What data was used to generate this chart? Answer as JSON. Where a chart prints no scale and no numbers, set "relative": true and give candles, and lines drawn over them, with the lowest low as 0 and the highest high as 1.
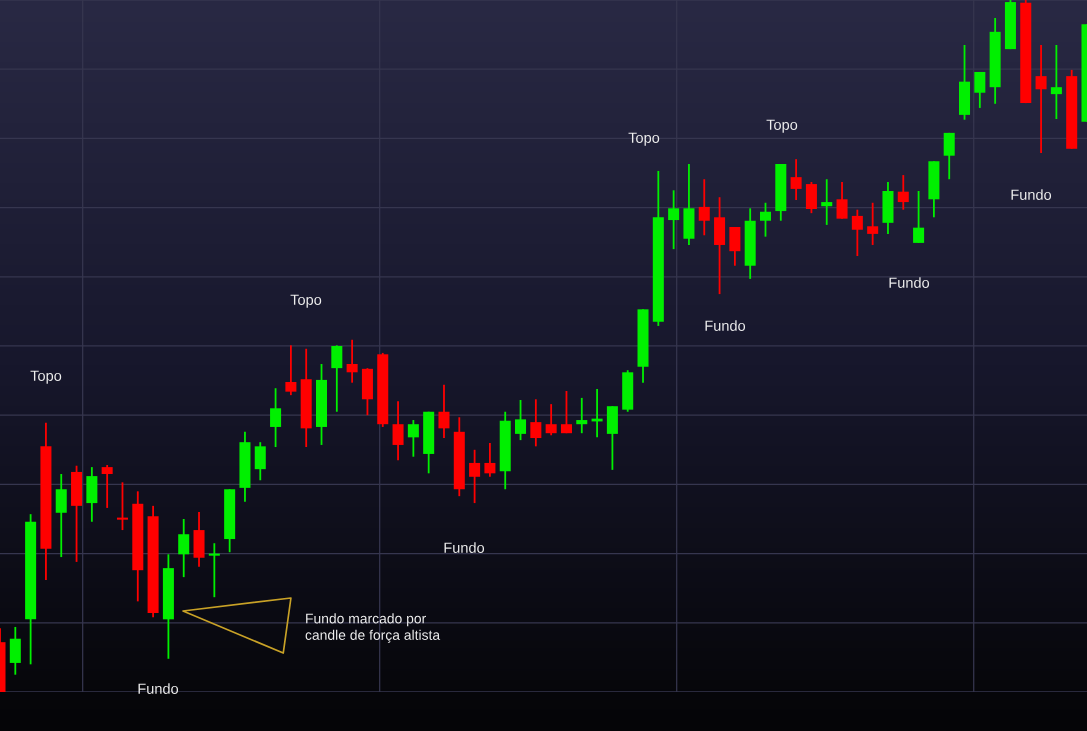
{
  "chart_data": {
    "type": "candlestick",
    "relative": true,
    "grid": true,
    "categories": [
      null,
      null,
      null,
      null,
      null,
      null,
      null,
      null,
      null,
      null,
      null,
      null,
      null,
      null,
      null,
      null,
      null,
      null,
      null,
      null,
      null,
      null,
      null,
      null,
      null,
      null,
      null,
      null,
      null,
      null,
      null,
      null,
      null,
      null,
      null,
      null,
      null,
      null,
      null,
      null,
      null,
      null,
      null,
      null,
      null,
      null,
      null,
      null,
      null,
      null,
      null,
      null,
      null,
      null,
      null,
      null,
      null,
      null,
      null,
      null,
      null,
      null,
      null,
      null,
      null,
      null,
      null,
      null,
      null,
      null,
      null,
      null
    ],
    "ohlc": [
      [
        0.072,
        0.092,
        0,
        0
      ],
      [
        0.042,
        0.094,
        0.025,
        0.077
      ],
      [
        0.105,
        0.257,
        0.04,
        0.246
      ],
      [
        0.355,
        0.389,
        0.162,
        0.207
      ],
      [
        0.259,
        0.315,
        0.195,
        0.293
      ],
      [
        0.318,
        0.327,
        0.188,
        0.269
      ],
      [
        0.273,
        0.325,
        0.246,
        0.312
      ],
      [
        0.325,
        0.328,
        0.266,
        0.315
      ],
      [
        0.252,
        0.303,
        0.234,
        0.249
      ],
      [
        0.272,
        0.29,
        0.131,
        0.176
      ],
      [
        0.254,
        0.269,
        0.108,
        0.114
      ],
      [
        0.105,
        0.199,
        0.048,
        0.179
      ],
      [
        0.199,
        0.25,
        0.166,
        0.228
      ],
      [
        0.234,
        0.26,
        0.181,
        0.194
      ],
      [
        0.197,
        0.215,
        0.137,
        0.2
      ],
      [
        0.221,
        0.293,
        0.202,
        0.293
      ],
      [
        0.295,
        0.376,
        0.275,
        0.361
      ],
      [
        0.322,
        0.361,
        0.306,
        0.355
      ],
      [
        0.383,
        0.439,
        0.354,
        0.41
      ],
      [
        0.448,
        0.501,
        0.429,
        0.434
      ],
      [
        0.452,
        0.496,
        0.354,
        0.381
      ],
      [
        0.383,
        0.474,
        0.357,
        0.451
      ],
      [
        0.468,
        0.501,
        0.405,
        0.5
      ],
      [
        0.474,
        0.509,
        0.447,
        0.462
      ],
      [
        0.467,
        0.468,
        0.4,
        0.423
      ],
      [
        0.488,
        0.49,
        0.383,
        0.387
      ],
      [
        0.387,
        0.42,
        0.335,
        0.357
      ],
      [
        0.368,
        0.393,
        0.34,
        0.387
      ],
      [
        0.344,
        0.405,
        0.316,
        0.405
      ],
      [
        0.405,
        0.444,
        0.367,
        0.381
      ],
      [
        0.376,
        0.397,
        0.283,
        0.293
      ],
      [
        0.331,
        0.35,
        0.273,
        0.311
      ],
      [
        0.331,
        0.36,
        0.311,
        0.316
      ],
      [
        0.319,
        0.405,
        0.293,
        0.392
      ],
      [
        0.373,
        0.422,
        0.364,
        0.394
      ],
      [
        0.39,
        0.423,
        0.355,
        0.367
      ],
      [
        0.387,
        0.416,
        0.371,
        0.374
      ],
      [
        0.387,
        0.435,
        0.374,
        0.374
      ],
      [
        0.387,
        0.425,
        0.374,
        0.393
      ],
      [
        0.391,
        0.438,
        0.368,
        0.395
      ],
      [
        0.373,
        0.413,
        0.321,
        0.413
      ],
      [
        0.408,
        0.465,
        0.405,
        0.462
      ],
      [
        0.47,
        0.553,
        0.447,
        0.553
      ],
      [
        0.535,
        0.753,
        0.529,
        0.686
      ],
      [
        0.682,
        0.725,
        0.64,
        0.699
      ],
      [
        0.655,
        0.763,
        0.646,
        0.699
      ],
      [
        0.701,
        0.741,
        0.66,
        0.681
      ],
      [
        0.686,
        0.715,
        0.575,
        0.646
      ],
      [
        0.672,
        0.672,
        0.616,
        0.637
      ],
      [
        0.616,
        0.699,
        0.597,
        0.681
      ],
      [
        0.681,
        0.707,
        0.658,
        0.694
      ],
      [
        0.695,
        0.763,
        0.681,
        0.763
      ],
      [
        0.744,
        0.77,
        0.711,
        0.727
      ],
      [
        0.734,
        0.737,
        0.692,
        0.698
      ],
      [
        0.702,
        0.741,
        0.675,
        0.708
      ],
      [
        0.712,
        0.737,
        0.684,
        0.684
      ],
      [
        0.688,
        0.697,
        0.63,
        0.668
      ],
      [
        0.673,
        0.707,
        0.646,
        0.662
      ],
      [
        0.678,
        0.737,
        0.662,
        0.724
      ],
      [
        0.723,
        0.747,
        0.697,
        0.708
      ],
      [
        0.649,
        0.724,
        0.649,
        0.671
      ],
      [
        0.712,
        0.767,
        0.686,
        0.767
      ],
      [
        0.775,
        0.808,
        0.741,
        0.808
      ],
      [
        0.834,
        0.935,
        0.827,
        0.882
      ],
      [
        0.866,
        0.896,
        0.844,
        0.896
      ],
      [
        0.874,
        0.974,
        0.85,
        0.954
      ],
      [
        0.929,
        1,
        0.929,
        0.997
      ],
      [
        0.996,
        1,
        0.851,
        0.851
      ],
      [
        0.89,
        0.935,
        0.779,
        0.871
      ],
      [
        0.864,
        0.935,
        0.828,
        0.874
      ],
      [
        0.89,
        0.899,
        0.785,
        0.785
      ],
      [
        0.824,
        0.965,
        0.824,
        0.965
      ]
    ],
    "colors": [
      "#ff0000",
      "#00f000",
      "#00f000",
      "#ff0000",
      "#00f000",
      "#ff0000",
      "#00f000",
      "#ff0000",
      "#ff0000",
      "#ff0000",
      "#ff0000",
      "#00f000",
      "#00f000",
      "#ff0000",
      "#00f000",
      "#00f000",
      "#00f000",
      "#00f000",
      "#00f000",
      "#ff0000",
      "#ff0000",
      "#00f000",
      "#00f000",
      "#ff0000",
      "#ff0000",
      "#ff0000",
      "#ff0000",
      "#00f000",
      "#00f000",
      "#ff0000",
      "#ff0000",
      "#ff0000",
      "#ff0000",
      "#00f000",
      "#00f000",
      "#ff0000",
      "#ff0000",
      "#ff0000",
      "#00f000",
      "#00f000",
      "#00f000",
      "#00f000",
      "#00f000",
      "#00f000",
      "#00f000",
      "#00f000",
      "#ff0000",
      "#ff0000",
      "#ff0000",
      "#00f000",
      "#00f000",
      "#00f000",
      "#ff0000",
      "#ff0000",
      "#00f000",
      "#ff0000",
      "#ff0000",
      "#ff0000",
      "#00f000",
      "#ff0000",
      "#00f000",
      "#00f000",
      "#00f000",
      "#00f000",
      "#00f000",
      "#00f000",
      "#00f000",
      "#ff0000",
      "#ff0000",
      "#00f000",
      "#ff0000",
      "#00f000"
    ],
    "annotations": [
      "Topo",
      "Fundo",
      "Topo",
      "Fundo marcado por\ncandle de força altista",
      "Fundo",
      "Topo",
      "Fundo",
      "Topo",
      "Fundo",
      "Fundo"
    ]
  }
}
